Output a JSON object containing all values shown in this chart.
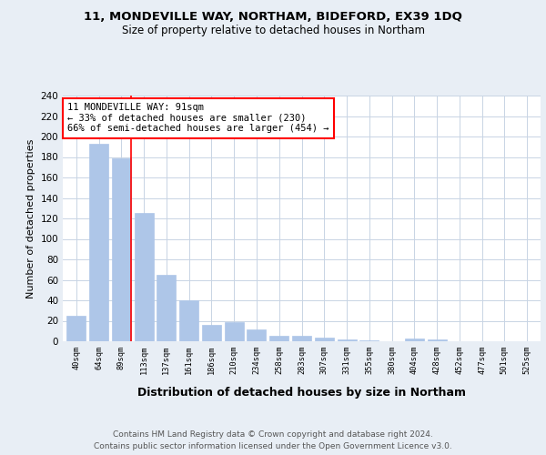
{
  "title1": "11, MONDEVILLE WAY, NORTHAM, BIDEFORD, EX39 1DQ",
  "title2": "Size of property relative to detached houses in Northam",
  "xlabel": "Distribution of detached houses by size in Northam",
  "ylabel": "Number of detached properties",
  "footer": "Contains HM Land Registry data © Crown copyright and database right 2024.\nContains public sector information licensed under the Open Government Licence v3.0.",
  "categories": [
    "40sqm",
    "64sqm",
    "89sqm",
    "113sqm",
    "137sqm",
    "161sqm",
    "186sqm",
    "210sqm",
    "234sqm",
    "258sqm",
    "283sqm",
    "307sqm",
    "331sqm",
    "355sqm",
    "380sqm",
    "404sqm",
    "428sqm",
    "452sqm",
    "477sqm",
    "501sqm",
    "525sqm"
  ],
  "values": [
    25,
    193,
    179,
    125,
    65,
    40,
    16,
    19,
    12,
    5,
    5,
    4,
    2,
    1,
    0,
    3,
    2,
    0,
    0,
    0,
    0
  ],
  "bar_color": "#aec6e8",
  "bar_edgecolor": "#aec6e8",
  "annotation_box_text": "11 MONDEVILLE WAY: 91sqm\n← 33% of detached houses are smaller (230)\n66% of semi-detached houses are larger (454) →",
  "annotation_box_color": "white",
  "annotation_box_edgecolor": "red",
  "redline_bar_index": 2,
  "ylim": [
    0,
    240
  ],
  "yticks": [
    0,
    20,
    40,
    60,
    80,
    100,
    120,
    140,
    160,
    180,
    200,
    220,
    240
  ],
  "background_color": "#e8eef5",
  "plot_background": "white",
  "grid_color": "#c8d4e4"
}
